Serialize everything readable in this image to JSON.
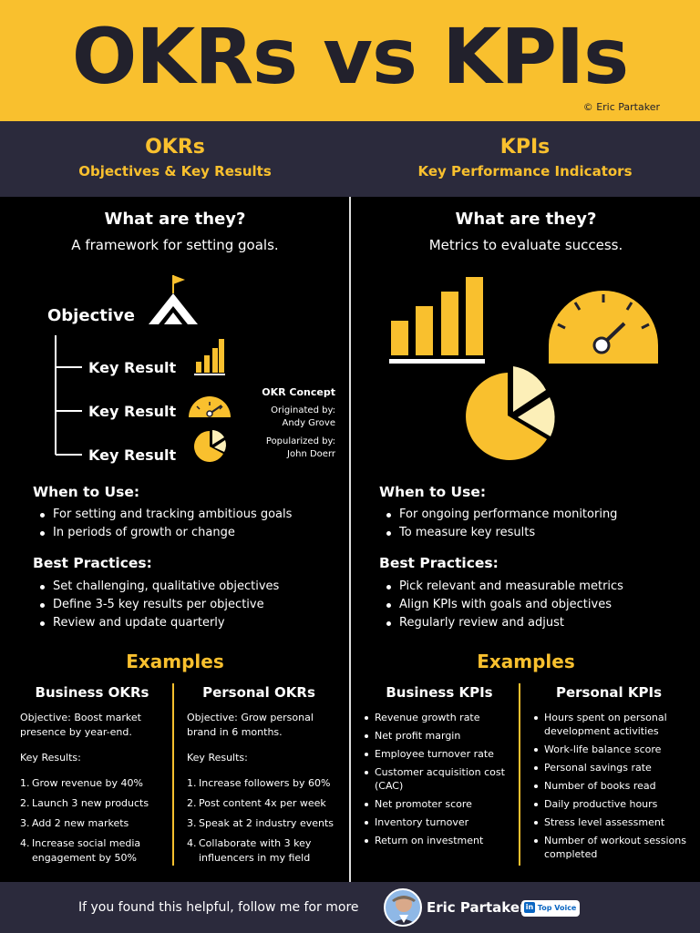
{
  "banner": {
    "title": "OKRs vs KPIs",
    "copyright": "© Eric Partaker"
  },
  "okr": {
    "title": "OKRs",
    "subtitle": "Objectives & Key Results",
    "what_title": "What are they?",
    "what_text": "A framework for setting goals.",
    "diagram": {
      "objective": "Objective",
      "key_results": [
        "Key Result",
        "Key Result",
        "Key Result"
      ]
    },
    "concept": {
      "title": "OKR Concept",
      "originated_label": "Originated by:",
      "originated_name": "Andy Grove",
      "popularized_label": "Popularized by:",
      "popularized_name": "John Doerr"
    },
    "when_title": "When to Use:",
    "when": [
      "For setting and tracking ambitious goals",
      "In periods of growth or change"
    ],
    "best_title": "Best Practices:",
    "best": [
      "Set challenging, qualitative objectives",
      "Define 3-5 key results per objective",
      "Review and update quarterly"
    ],
    "examples_title": "Examples",
    "business": {
      "title": "Business OKRs",
      "objective": "Objective: Boost market presence by year-end.",
      "kr_label": "Key Results:",
      "items": [
        "Grow revenue by 40%",
        "Launch 3 new products",
        "Add 2 new markets",
        "Increase social media engagement by 50%"
      ]
    },
    "personal": {
      "title": "Personal OKRs",
      "objective": "Objective: Grow personal brand in 6 months.",
      "kr_label": "Key Results:",
      "items": [
        "Increase followers by 60%",
        "Post content 4x per week",
        "Speak at 2 industry events",
        "Collaborate with 3 key influencers in my field"
      ]
    }
  },
  "kpi": {
    "title": "KPIs",
    "subtitle": "Key Performance Indicators",
    "what_title": "What are they?",
    "what_text": "Metrics to evaluate success.",
    "when_title": "When to Use:",
    "when": [
      "For ongoing performance monitoring",
      "To measure key results"
    ],
    "best_title": "Best Practices:",
    "best": [
      "Pick relevant and measurable metrics",
      "Align KPIs with goals and objectives",
      "Regularly review and adjust"
    ],
    "examples_title": "Examples",
    "business": {
      "title": "Business KPIs",
      "items": [
        "Revenue growth rate",
        "Net profit margin",
        "Employee turnover rate",
        "Customer acquisition cost (CAC)",
        "Net promoter score",
        "Inventory turnover",
        "Return on investment"
      ]
    },
    "personal": {
      "title": "Personal KPIs",
      "items": [
        "Hours spent on personal development activities",
        "Work-life balance score",
        "Personal savings rate",
        "Number of books read",
        "Daily productive hours",
        "Stress level assessment",
        "Number of workout sessions completed"
      ]
    }
  },
  "footer": {
    "cta": "If you found this helpful, follow me for more",
    "name": "Eric Partaker",
    "badge_in": "in",
    "badge": "Top Voice"
  },
  "colors": {
    "accent": "#f9c02e",
    "dark": "#22212c",
    "panel": "#2b2a3c",
    "light_accent": "#fcefb8"
  },
  "icons": [
    "mountain-flag-icon",
    "bar-chart-icon",
    "gauge-icon",
    "pie-chart-icon",
    "linkedin-icon"
  ]
}
